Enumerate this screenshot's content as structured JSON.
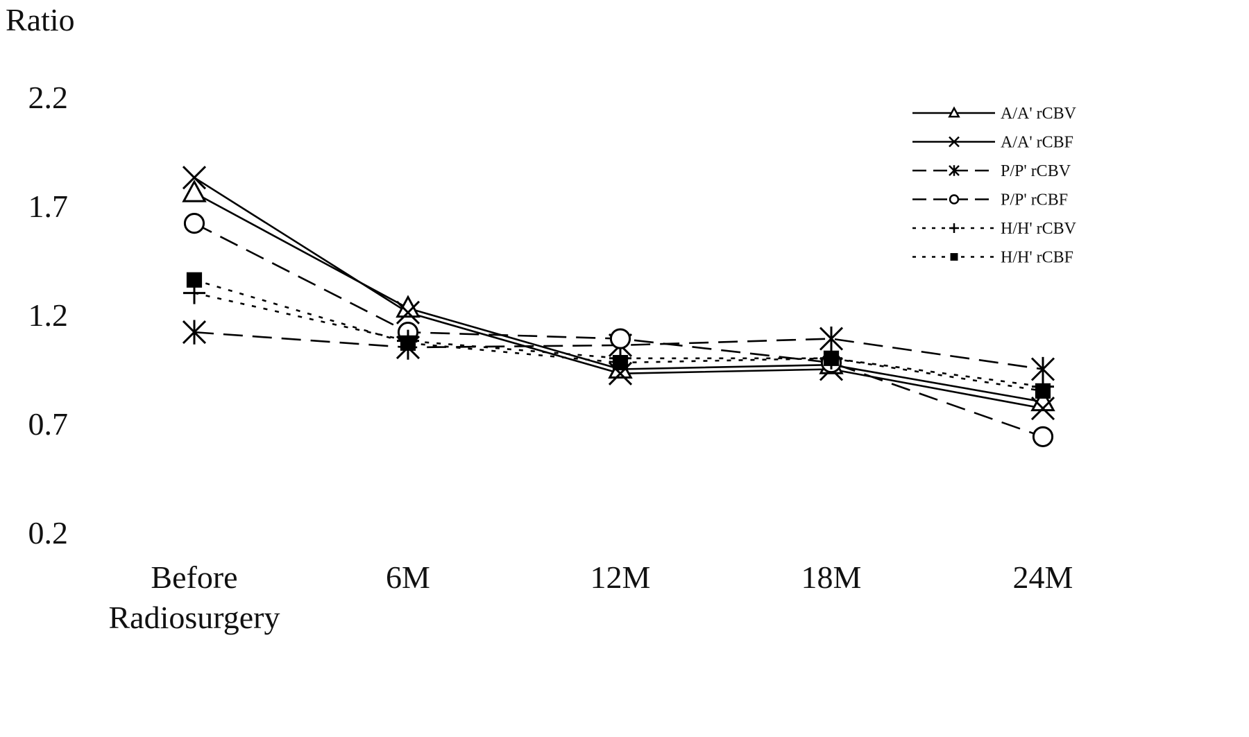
{
  "chart_data": {
    "type": "line",
    "title": "",
    "xlabel": "",
    "ylabel": "Ratio",
    "categories": [
      [
        "Before",
        "Radiosurgery"
      ],
      [
        "6M"
      ],
      [
        "12M"
      ],
      [
        "18M"
      ],
      [
        "24M"
      ]
    ],
    "yticks": [
      "0.2",
      "0.7",
      "1.2",
      "1.7",
      "2.2"
    ],
    "ylim": [
      0.2,
      2.2
    ],
    "grid": false,
    "legend_position": "top-right",
    "series": [
      {
        "name": "A/A' rCBV",
        "values": [
          1.76,
          1.23,
          0.95,
          0.97,
          0.8
        ],
        "line": "solid",
        "marker": "triangle"
      },
      {
        "name": "A/A' rCBF",
        "values": [
          1.83,
          1.21,
          0.93,
          0.95,
          0.77
        ],
        "line": "solid",
        "marker": "x"
      },
      {
        "name": "P/P' rCBV",
        "values": [
          1.12,
          1.05,
          1.06,
          1.09,
          0.95
        ],
        "line": "dash",
        "marker": "asterisk"
      },
      {
        "name": "P/P' rCBF",
        "values": [
          1.62,
          1.12,
          1.09,
          0.98,
          0.64
        ],
        "line": "dash",
        "marker": "circle"
      },
      {
        "name": "H/H' rCBV",
        "values": [
          1.3,
          1.08,
          1.0,
          1.0,
          0.87
        ],
        "line": "dot",
        "marker": "plus"
      },
      {
        "name": "H/H' rCBF",
        "values": [
          1.36,
          1.07,
          0.98,
          1.0,
          0.85
        ],
        "line": "dot",
        "marker": "square"
      }
    ]
  }
}
